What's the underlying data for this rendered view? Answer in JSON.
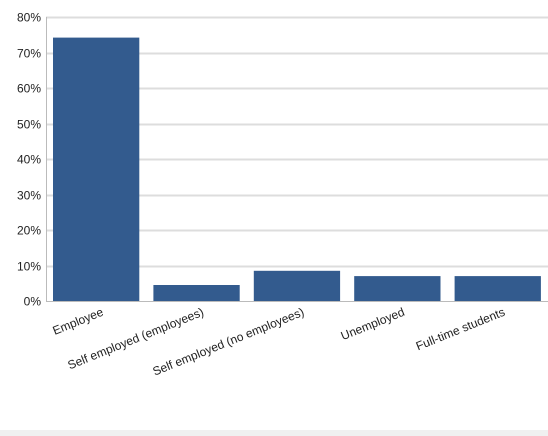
{
  "chart_data": {
    "type": "bar",
    "categories": [
      "Employee",
      "Self employed (employees)",
      "Self employed (no employees)",
      "Unemployed",
      "Full-time students"
    ],
    "values": [
      74.2,
      4.5,
      8.5,
      7.0,
      7.0
    ],
    "ylim": [
      0,
      80
    ],
    "yticks": [
      0,
      10,
      20,
      30,
      40,
      50,
      60,
      70,
      80
    ],
    "ytick_labels": [
      "0%",
      "10%",
      "20%",
      "30%",
      "40%",
      "50%",
      "60%",
      "70%",
      "80%"
    ],
    "grid": true,
    "title": "",
    "xlabel": "",
    "ylabel": "",
    "bar_color": "#335b8e",
    "grid_color": "#dddddd",
    "axis_color": "#bbbbbb"
  }
}
